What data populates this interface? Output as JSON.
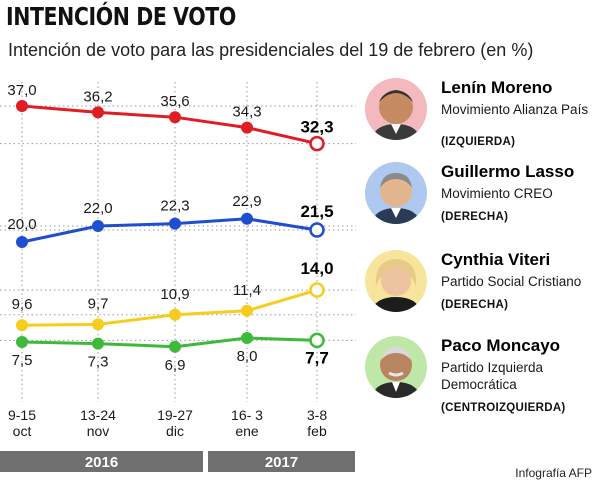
{
  "title": "INTENCIÓN DE VOTO",
  "subtitle": "Intención de voto para las presidenciales del 19 de febrero (en %)",
  "credit": "Infografía AFP",
  "chart_data": {
    "type": "line",
    "title": "Intención de voto para las presidenciales del 19 de febrero (en %)",
    "categories": [
      "9-15 oct",
      "13-24 nov",
      "19-27 dic",
      "16- 3 ene",
      "3-8 feb"
    ],
    "category_lines": [
      [
        "9-15",
        "oct"
      ],
      [
        "13-24",
        "nov"
      ],
      [
        "19-27",
        "dic"
      ],
      [
        "16- 3",
        "ene"
      ],
      [
        "3-8",
        "feb"
      ]
    ],
    "year_groups": [
      {
        "label": "2016",
        "span": [
          0,
          2
        ]
      },
      {
        "label": "2017",
        "span": [
          3,
          4
        ]
      }
    ],
    "ylim": [
      0,
      40
    ],
    "grid": true,
    "series": [
      {
        "name": "Lenín Moreno",
        "color": "#e01c24",
        "values": [
          37.0,
          36.2,
          35.6,
          34.3,
          32.3
        ],
        "labels": [
          "37,0",
          "36,2",
          "35,6",
          "34,3",
          "32,3"
        ]
      },
      {
        "name": "Guillermo Lasso",
        "color": "#1f4fd0",
        "values": [
          20.0,
          22.0,
          22.3,
          22.9,
          21.5
        ],
        "labels": [
          "20,0",
          "22,0",
          "22,3",
          "22,9",
          "21,5"
        ]
      },
      {
        "name": "Cynthia Viteri",
        "color": "#f6cd1f",
        "values": [
          9.6,
          9.7,
          10.9,
          11.4,
          14.0
        ],
        "labels": [
          "9,6",
          "9,7",
          "10,9",
          "11,4",
          "14,0"
        ]
      },
      {
        "name": "Paco Moncayo",
        "color": "#3dba3a",
        "values": [
          7.5,
          7.3,
          6.9,
          8.0,
          7.7
        ],
        "labels": [
          "7,5",
          "7,3",
          "6,9",
          "8,0",
          "7,7"
        ]
      }
    ]
  },
  "candidates": [
    {
      "name": "Lenín Moreno",
      "party": "Movimiento Alianza País",
      "ideology": "(IZQUIERDA)",
      "color": "#f3b9bf"
    },
    {
      "name": "Guillermo Lasso",
      "party": "Movimiento CREO",
      "ideology": "(DERECHA)",
      "color": "#aec8f0"
    },
    {
      "name": "Cynthia Viteri",
      "party": "Partido Social Cristiano",
      "ideology": "(DERECHA)",
      "color": "#f6e59a"
    },
    {
      "name": "Paco Moncayo",
      "party": "Partido Izquierda Democrática",
      "ideology": "(CENTROIZQUIERDA)",
      "color": "#bfe8a8"
    }
  ]
}
